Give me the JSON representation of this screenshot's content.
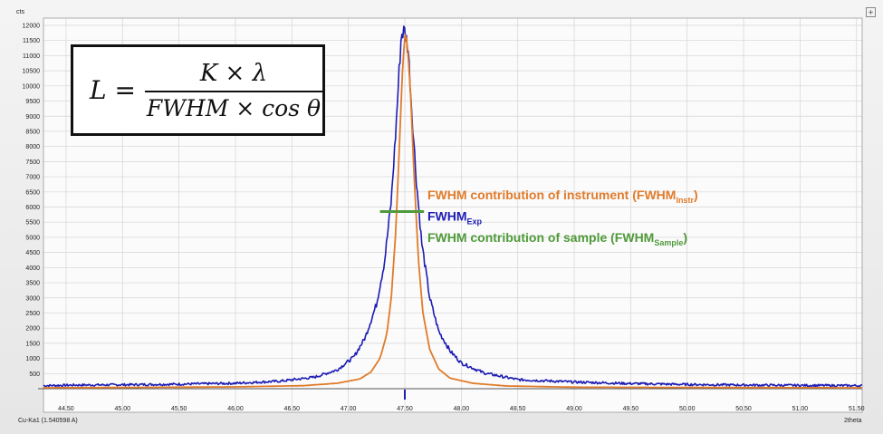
{
  "formula": {
    "lhs": "L =",
    "numerator": "K × λ",
    "denominator": "FWHM × cos θ"
  },
  "corner_button": "+",
  "chart_data": {
    "type": "line",
    "title": "",
    "xlabel": "2theta",
    "ylabel": "cts",
    "radiation": "Cu-Ka1 (1.540598 A)",
    "xlim": [
      44.3,
      51.55
    ],
    "ylim": [
      0,
      12200
    ],
    "grid": true,
    "x_ticks": [
      44.5,
      45.0,
      45.5,
      46.0,
      46.5,
      47.0,
      47.5,
      48.0,
      48.5,
      49.0,
      49.5,
      50.0,
      50.5,
      51.0,
      51.5
    ],
    "x_tick_labels": [
      "44.50",
      "45.00",
      "45.50",
      "46.00",
      "46.50",
      "47.00",
      "47.50",
      "48.00",
      "48.50",
      "49.00",
      "49.50",
      "50.00",
      "50.50",
      "51.00",
      "51.50"
    ],
    "y_ticks": [
      500,
      1000,
      1500,
      2000,
      2500,
      3000,
      3500,
      4000,
      4500,
      5000,
      5500,
      6000,
      6500,
      7000,
      7500,
      8000,
      8500,
      9000,
      9500,
      10000,
      10500,
      11000,
      11500,
      12000
    ],
    "y_tick_labels": [
      "500",
      "1000",
      "1500",
      "2000",
      "2500",
      "3000",
      "3500",
      "4000",
      "4500",
      "5000",
      "5500",
      "6000",
      "6500",
      "7000",
      "7500",
      "8000",
      "8500",
      "9000",
      "9500",
      "10000",
      "10500",
      "11000",
      "11500",
      "12000"
    ],
    "series": [
      {
        "name": "FWHM_Exp",
        "color": "#1c1cb4",
        "x": [
          44.3,
          44.6,
          45.0,
          45.5,
          46.0,
          46.4,
          46.7,
          46.9,
          47.05,
          47.15,
          47.25,
          47.32,
          47.38,
          47.42,
          47.45,
          47.47,
          47.5,
          47.53,
          47.56,
          47.6,
          47.65,
          47.72,
          47.8,
          47.9,
          48.0,
          48.2,
          48.5,
          49.0,
          49.5,
          50.0,
          50.5,
          51.0,
          51.55
        ],
        "y": [
          100,
          120,
          130,
          150,
          180,
          250,
          380,
          620,
          1050,
          1700,
          2800,
          4200,
          6200,
          8500,
          10500,
          11750,
          11800,
          11200,
          9300,
          7000,
          4800,
          3000,
          1900,
          1250,
          850,
          520,
          300,
          220,
          170,
          140,
          120,
          110,
          100
        ]
      },
      {
        "name": "FWHM_Instr",
        "color": "#e07b2a",
        "x": [
          44.3,
          45.0,
          46.0,
          46.6,
          46.9,
          47.1,
          47.2,
          47.28,
          47.34,
          47.38,
          47.42,
          47.45,
          47.48,
          47.5,
          47.52,
          47.55,
          47.58,
          47.62,
          47.66,
          47.72,
          47.8,
          47.9,
          48.1,
          48.4,
          49.0,
          50.0,
          51.55
        ],
        "y": [
          30,
          40,
          60,
          100,
          180,
          320,
          550,
          1000,
          1800,
          3000,
          5200,
          7800,
          10600,
          11700,
          11500,
          9800,
          7200,
          4300,
          2500,
          1300,
          650,
          350,
          180,
          90,
          50,
          40,
          30
        ]
      }
    ],
    "fwhm_bar": {
      "x_start": 47.28,
      "x_end": 47.67,
      "y": 5850,
      "color": "#4f9a3a"
    },
    "annotations": [
      {
        "key": "instr",
        "text": "FWHM contribution of instrument (FWHM",
        "sub": "Instr",
        "close": ")",
        "color": "#e07b2a",
        "x": 47.7,
        "y": 6250
      },
      {
        "key": "exp",
        "text": "FWHM",
        "sub": "Exp",
        "close": "",
        "color": "#1c1cb4",
        "x": 47.7,
        "y": 5550
      },
      {
        "key": "sample",
        "text": "FWHM contribution of sample (FWHM",
        "sub": "Sample",
        "close": ")",
        "color": "#4f9a3a",
        "x": 47.7,
        "y": 4850
      }
    ],
    "marker_x": 47.5
  }
}
